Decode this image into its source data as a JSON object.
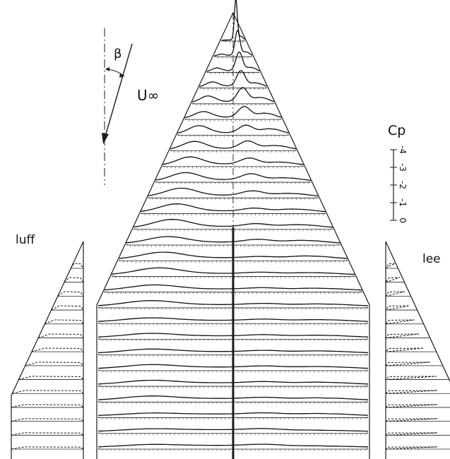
{
  "labels": {
    "beta": "β",
    "u_inf": "U∞",
    "cp": "Cp",
    "luff": "luff",
    "lee": "lee",
    "scale_ticks": [
      "-4",
      "-3",
      "-2",
      "-1",
      "0"
    ]
  },
  "wing": {
    "stations": 27,
    "rows": [
      [
        0.06,
        0.0,
        2.6,
        0.4
      ],
      [
        0.07,
        0.1,
        1.6,
        0.4
      ],
      [
        0.09,
        0.2,
        1.2,
        0.4
      ],
      [
        0.11,
        0.3,
        1.0,
        0.4
      ],
      [
        0.12,
        0.4,
        0.9,
        0.5
      ],
      [
        0.12,
        0.4,
        0.7,
        0.5
      ],
      [
        0.13,
        0.5,
        0.5,
        0.5
      ],
      [
        0.13,
        0.5,
        0.5,
        0.4
      ],
      [
        0.14,
        0.5,
        0.4,
        0.3
      ],
      [
        0.14,
        0.5,
        0.4,
        0.3
      ],
      [
        0.15,
        0.5,
        0.3,
        0.3
      ],
      [
        0.15,
        0.5,
        0.2,
        0.3
      ],
      [
        0.16,
        0.5,
        0.2,
        0.3
      ],
      [
        0.16,
        0.4,
        0.2,
        0.3
      ],
      [
        0.17,
        0.4,
        0.1,
        0.3
      ],
      [
        0.17,
        0.4,
        0.1,
        0.2
      ],
      [
        0.18,
        0.3,
        0.1,
        0.2
      ],
      [
        0.18,
        0.3,
        0.1,
        0.2
      ],
      [
        0.18,
        0.2,
        0.1,
        0.2
      ],
      [
        0.19,
        0.2,
        0.1,
        0.2
      ],
      [
        0.19,
        0.2,
        0.1,
        0.2
      ],
      [
        0.2,
        0.2,
        0.1,
        0.2
      ],
      [
        0.2,
        0.2,
        0.1,
        0.2
      ],
      [
        0.2,
        0.2,
        0.1,
        0.2
      ],
      [
        0.21,
        0.1,
        0.1,
        0.2
      ],
      [
        0.21,
        0.1,
        0.1,
        0.1
      ],
      [
        0.21,
        0.1,
        0.1,
        0.1
      ]
    ]
  },
  "luff_panel": {
    "stations": 14
  },
  "lee_panel": {
    "stations": 14
  }
}
